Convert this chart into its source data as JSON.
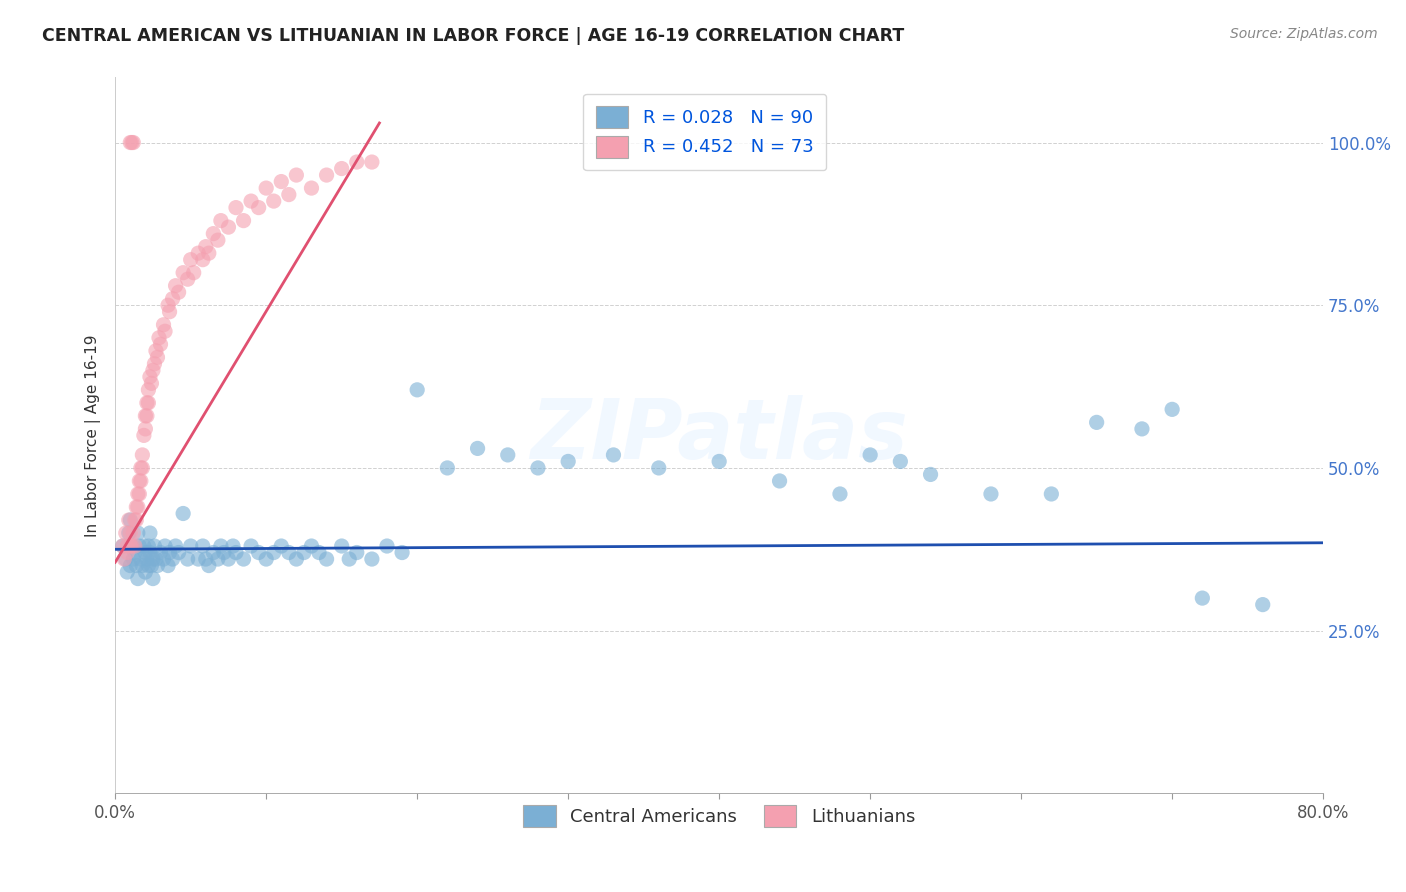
{
  "title": "CENTRAL AMERICAN VS LITHUANIAN IN LABOR FORCE | AGE 16-19 CORRELATION CHART",
  "source": "Source: ZipAtlas.com",
  "ylabel": "In Labor Force | Age 16-19",
  "xlim": [
    0.0,
    0.8
  ],
  "ylim": [
    0.0,
    1.1
  ],
  "xtick_positions": [
    0.0,
    0.1,
    0.2,
    0.3,
    0.4,
    0.5,
    0.6,
    0.7,
    0.8
  ],
  "xticklabels": [
    "0.0%",
    "",
    "",
    "",
    "",
    "",
    "",
    "",
    "80.0%"
  ],
  "ytick_positions": [
    0.25,
    0.5,
    0.75,
    1.0
  ],
  "yticklabels": [
    "25.0%",
    "50.0%",
    "75.0%",
    "100.0%"
  ],
  "blue_color": "#7BAfd4",
  "pink_color": "#F4A0B0",
  "blue_line_color": "#1E4FAF",
  "pink_line_color": "#E05070",
  "R_blue": 0.028,
  "N_blue": 90,
  "R_pink": 0.452,
  "N_pink": 73,
  "legend_blue_label": "Central Americans",
  "legend_pink_label": "Lithuanians",
  "watermark": "ZIPatlas",
  "blue_x": [
    0.005,
    0.007,
    0.008,
    0.009,
    0.01,
    0.01,
    0.011,
    0.012,
    0.013,
    0.014,
    0.015,
    0.015,
    0.016,
    0.017,
    0.018,
    0.019,
    0.02,
    0.02,
    0.021,
    0.022,
    0.022,
    0.023,
    0.023,
    0.024,
    0.025,
    0.025,
    0.026,
    0.027,
    0.028,
    0.03,
    0.032,
    0.033,
    0.035,
    0.036,
    0.038,
    0.04,
    0.042,
    0.045,
    0.048,
    0.05,
    0.055,
    0.058,
    0.06,
    0.062,
    0.065,
    0.068,
    0.07,
    0.072,
    0.075,
    0.078,
    0.08,
    0.085,
    0.09,
    0.095,
    0.1,
    0.105,
    0.11,
    0.115,
    0.12,
    0.125,
    0.13,
    0.135,
    0.14,
    0.15,
    0.155,
    0.16,
    0.17,
    0.18,
    0.19,
    0.2,
    0.22,
    0.24,
    0.26,
    0.28,
    0.3,
    0.33,
    0.36,
    0.4,
    0.44,
    0.48,
    0.5,
    0.52,
    0.54,
    0.58,
    0.62,
    0.65,
    0.68,
    0.7,
    0.72,
    0.76
  ],
  "blue_y": [
    0.38,
    0.36,
    0.34,
    0.4,
    0.35,
    0.42,
    0.38,
    0.36,
    0.37,
    0.35,
    0.33,
    0.4,
    0.38,
    0.36,
    0.35,
    0.38,
    0.37,
    0.34,
    0.36,
    0.38,
    0.35,
    0.4,
    0.37,
    0.35,
    0.36,
    0.33,
    0.38,
    0.36,
    0.35,
    0.37,
    0.36,
    0.38,
    0.35,
    0.37,
    0.36,
    0.38,
    0.37,
    0.43,
    0.36,
    0.38,
    0.36,
    0.38,
    0.36,
    0.35,
    0.37,
    0.36,
    0.38,
    0.37,
    0.36,
    0.38,
    0.37,
    0.36,
    0.38,
    0.37,
    0.36,
    0.37,
    0.38,
    0.37,
    0.36,
    0.37,
    0.38,
    0.37,
    0.36,
    0.38,
    0.36,
    0.37,
    0.36,
    0.38,
    0.37,
    0.62,
    0.5,
    0.53,
    0.52,
    0.5,
    0.51,
    0.52,
    0.5,
    0.51,
    0.48,
    0.46,
    0.52,
    0.51,
    0.49,
    0.46,
    0.46,
    0.57,
    0.56,
    0.59,
    0.3,
    0.29
  ],
  "pink_x": [
    0.005,
    0.006,
    0.007,
    0.008,
    0.008,
    0.009,
    0.01,
    0.01,
    0.01,
    0.011,
    0.011,
    0.012,
    0.012,
    0.013,
    0.013,
    0.014,
    0.014,
    0.015,
    0.015,
    0.016,
    0.016,
    0.017,
    0.017,
    0.018,
    0.018,
    0.019,
    0.02,
    0.02,
    0.021,
    0.021,
    0.022,
    0.022,
    0.023,
    0.024,
    0.025,
    0.026,
    0.027,
    0.028,
    0.029,
    0.03,
    0.032,
    0.033,
    0.035,
    0.036,
    0.038,
    0.04,
    0.042,
    0.045,
    0.048,
    0.05,
    0.052,
    0.055,
    0.058,
    0.06,
    0.062,
    0.065,
    0.068,
    0.07,
    0.075,
    0.08,
    0.085,
    0.09,
    0.095,
    0.1,
    0.105,
    0.11,
    0.115,
    0.12,
    0.13,
    0.14,
    0.15,
    0.16,
    0.17
  ],
  "pink_y": [
    0.38,
    0.36,
    0.4,
    0.38,
    0.37,
    0.42,
    0.4,
    0.38,
    1.0,
    1.0,
    0.38,
    1.0,
    0.4,
    0.42,
    0.38,
    0.44,
    0.42,
    0.46,
    0.44,
    0.48,
    0.46,
    0.5,
    0.48,
    0.52,
    0.5,
    0.55,
    0.58,
    0.56,
    0.6,
    0.58,
    0.62,
    0.6,
    0.64,
    0.63,
    0.65,
    0.66,
    0.68,
    0.67,
    0.7,
    0.69,
    0.72,
    0.71,
    0.75,
    0.74,
    0.76,
    0.78,
    0.77,
    0.8,
    0.79,
    0.82,
    0.8,
    0.83,
    0.82,
    0.84,
    0.83,
    0.86,
    0.85,
    0.88,
    0.87,
    0.9,
    0.88,
    0.91,
    0.9,
    0.93,
    0.91,
    0.94,
    0.92,
    0.95,
    0.93,
    0.95,
    0.96,
    0.97,
    0.97
  ],
  "pink_line_x0": 0.0,
  "pink_line_y0": 0.355,
  "pink_line_x1": 0.175,
  "pink_line_y1": 1.03,
  "blue_line_x0": 0.0,
  "blue_line_y0": 0.375,
  "blue_line_x1": 0.8,
  "blue_line_y1": 0.385
}
